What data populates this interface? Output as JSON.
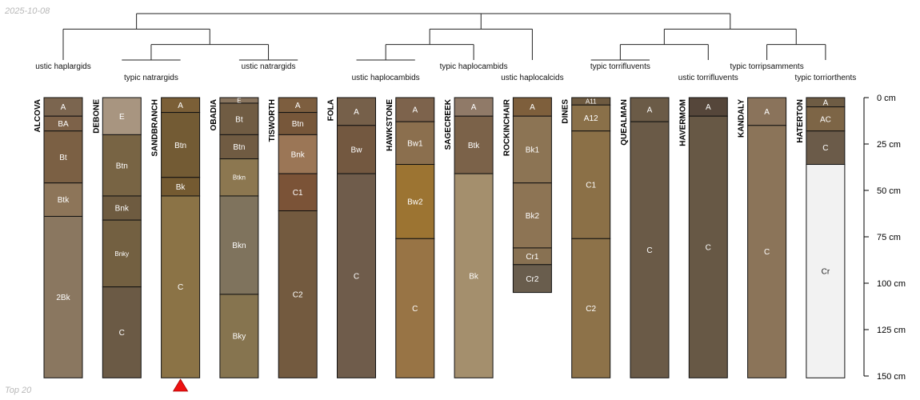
{
  "date_stamp": "2025-10-08",
  "footer_label": "Top 20",
  "chart_data": {
    "type": "soil-profile-sketch",
    "depth_axis": {
      "unit": "cm",
      "range": [
        0,
        150
      ],
      "ticks": [
        0,
        25,
        50,
        75,
        100,
        125,
        150
      ],
      "tick_labels": [
        "0 cm",
        "25 cm",
        "50 cm",
        "75 cm",
        "100 cm",
        "125 cm",
        "150 cm"
      ]
    },
    "marker_profile": "SANDBRANCH",
    "profiles": [
      {
        "name": "ALCOVA",
        "horizons": [
          {
            "name": "A",
            "top": 0,
            "bottom": 10,
            "color": "#7b654f"
          },
          {
            "name": "BA",
            "top": 10,
            "bottom": 18,
            "color": "#7d6249"
          },
          {
            "name": "Bt",
            "top": 18,
            "bottom": 46,
            "color": "#7b6044"
          },
          {
            "name": "Btk",
            "top": 46,
            "bottom": 64,
            "color": "#8d7559"
          },
          {
            "name": "2Bk",
            "top": 64,
            "bottom": 151,
            "color": "#8a7760"
          }
        ]
      },
      {
        "name": "DEBONE",
        "horizons": [
          {
            "name": "E",
            "top": 0,
            "bottom": 20,
            "color": "#a89580"
          },
          {
            "name": "Btn",
            "top": 20,
            "bottom": 53,
            "color": "#786444"
          },
          {
            "name": "Bnk",
            "top": 53,
            "bottom": 66,
            "color": "#6e5b40"
          },
          {
            "name": "Bnky",
            "top": 66,
            "bottom": 102,
            "color": "#736041"
          },
          {
            "name": "C",
            "top": 102,
            "bottom": 151,
            "color": "#6b5a45"
          }
        ]
      },
      {
        "name": "SANDBRANCH",
        "horizons": [
          {
            "name": "A",
            "top": 0,
            "bottom": 8,
            "color": "#7b5f37"
          },
          {
            "name": "Btn",
            "top": 8,
            "bottom": 43,
            "color": "#735b34"
          },
          {
            "name": "Bk",
            "top": 43,
            "bottom": 53,
            "color": "#745a31"
          },
          {
            "name": "C",
            "top": 53,
            "bottom": 151,
            "color": "#8b7346"
          }
        ]
      },
      {
        "name": "OBADIA",
        "horizons": [
          {
            "name": "E",
            "top": 0,
            "bottom": 3,
            "color": "#88745e"
          },
          {
            "name": "Bt",
            "top": 3,
            "bottom": 20,
            "color": "#705c43"
          },
          {
            "name": "Btn",
            "top": 20,
            "bottom": 33,
            "color": "#705b42"
          },
          {
            "name": "Btkn",
            "top": 33,
            "bottom": 53,
            "color": "#8c7750"
          },
          {
            "name": "Bkn",
            "top": 53,
            "bottom": 106,
            "color": "#7f735d"
          },
          {
            "name": "Bky",
            "top": 106,
            "bottom": 151,
            "color": "#86744f"
          }
        ]
      },
      {
        "name": "TISWORTH",
        "horizons": [
          {
            "name": "A",
            "top": 0,
            "bottom": 8,
            "color": "#7d5e3f"
          },
          {
            "name": "Btn",
            "top": 8,
            "bottom": 20,
            "color": "#77573a"
          },
          {
            "name": "Bnk",
            "top": 20,
            "bottom": 41,
            "color": "#9b7656"
          },
          {
            "name": "C1",
            "top": 41,
            "bottom": 61,
            "color": "#7b5337"
          },
          {
            "name": "C2",
            "top": 61,
            "bottom": 151,
            "color": "#735a3f"
          }
        ]
      },
      {
        "name": "FOLA",
        "horizons": [
          {
            "name": "A",
            "top": 0,
            "bottom": 15,
            "color": "#76604a"
          },
          {
            "name": "Bw",
            "top": 15,
            "bottom": 41,
            "color": "#735840"
          },
          {
            "name": "C",
            "top": 41,
            "bottom": 151,
            "color": "#6f5c4b"
          }
        ]
      },
      {
        "name": "HAWKSTONE",
        "horizons": [
          {
            "name": "A",
            "top": 0,
            "bottom": 13,
            "color": "#7d634c"
          },
          {
            "name": "Bw1",
            "top": 13,
            "bottom": 36,
            "color": "#8b6f4e"
          },
          {
            "name": "Bw2",
            "top": 36,
            "bottom": 76,
            "color": "#9c7432"
          },
          {
            "name": "C",
            "top": 76,
            "bottom": 151,
            "color": "#987445"
          }
        ]
      },
      {
        "name": "SAGECREEK",
        "horizons": [
          {
            "name": "A",
            "top": 0,
            "bottom": 10,
            "color": "#907a68"
          },
          {
            "name": "Btk",
            "top": 10,
            "bottom": 41,
            "color": "#7b6249"
          },
          {
            "name": "Bk",
            "top": 41,
            "bottom": 151,
            "color": "#a48f6d"
          }
        ]
      },
      {
        "name": "ROCKINCHAIR",
        "horizons": [
          {
            "name": "A",
            "top": 0,
            "bottom": 10,
            "color": "#7e5f3c"
          },
          {
            "name": "Bk1",
            "top": 10,
            "bottom": 46,
            "color": "#8c7454"
          },
          {
            "name": "Bk2",
            "top": 46,
            "bottom": 81,
            "color": "#8d7454"
          },
          {
            "name": "Cr1",
            "top": 81,
            "bottom": 90,
            "color": "#887152"
          },
          {
            "name": "Cr2",
            "top": 90,
            "bottom": 105,
            "color": "#695d4d"
          }
        ]
      },
      {
        "name": "DINES",
        "horizons": [
          {
            "name": "A11",
            "top": 0,
            "bottom": 4,
            "color": "#6e5a40"
          },
          {
            "name": "A12",
            "top": 4,
            "bottom": 18,
            "color": "#8a7049"
          },
          {
            "name": "C1",
            "top": 18,
            "bottom": 76,
            "color": "#8b7047"
          },
          {
            "name": "C2",
            "top": 76,
            "bottom": 151,
            "color": "#8d7249"
          }
        ]
      },
      {
        "name": "QUEALMAN",
        "horizons": [
          {
            "name": "A",
            "top": 0,
            "bottom": 13,
            "color": "#6b5b47"
          },
          {
            "name": "C",
            "top": 13,
            "bottom": 151,
            "color": "#6a5a47"
          }
        ]
      },
      {
        "name": "HAVERMOM",
        "horizons": [
          {
            "name": "A",
            "top": 0,
            "bottom": 10,
            "color": "#55463a"
          },
          {
            "name": "C",
            "top": 10,
            "bottom": 151,
            "color": "#675845"
          }
        ]
      },
      {
        "name": "KANDALY",
        "horizons": [
          {
            "name": "A",
            "top": 0,
            "bottom": 15,
            "color": "#8a735b"
          },
          {
            "name": "C",
            "top": 15,
            "bottom": 151,
            "color": "#8b7459"
          }
        ]
      },
      {
        "name": "HATERTON",
        "horizons": [
          {
            "name": "A",
            "top": 0,
            "bottom": 5,
            "color": "#6e5c44"
          },
          {
            "name": "AC",
            "top": 5,
            "bottom": 18,
            "color": "#7d6546"
          },
          {
            "name": "C",
            "top": 18,
            "bottom": 36,
            "color": "#6b5b49"
          },
          {
            "name": "Cr",
            "top": 36,
            "bottom": 151,
            "color": "#f2f2f2"
          }
        ]
      }
    ],
    "groups": [
      {
        "label": "ustic haplargids",
        "members": [
          "ALCOVA"
        ]
      },
      {
        "label": "typic natrargids",
        "members": [
          "DEBONE",
          "SANDBRANCH"
        ]
      },
      {
        "label": "ustic natrargids",
        "members": [
          "OBADIA",
          "TISWORTH"
        ]
      },
      {
        "label": "ustic haplocambids",
        "members": [
          "FOLA",
          "HAWKSTONE"
        ]
      },
      {
        "label": "typic haplocambids",
        "members": [
          "SAGECREEK"
        ]
      },
      {
        "label": "ustic haplocalcids",
        "members": [
          "ROCKINCHAIR"
        ]
      },
      {
        "label": "typic torrifluvents",
        "members": [
          "DINES",
          "QUEALMAN"
        ]
      },
      {
        "label": "ustic torrifluvents",
        "members": [
          "HAVERMOM"
        ]
      },
      {
        "label": "typic torripsamments",
        "members": [
          "KANDALY"
        ]
      },
      {
        "label": "typic torriorthents",
        "members": [
          "HATERTON"
        ]
      }
    ],
    "dendrogram": [
      [
        "ustic haplargids",
        [
          "typic natrargids",
          "ustic natrargids"
        ]
      ],
      [
        [
          "ustic haplocambids",
          "typic haplocambids"
        ],
        "ustic haplocalcids"
      ],
      [
        [
          "typic torrifluvents",
          "ustic torrifluvents"
        ],
        [
          "typic torripsamments",
          "typic torriorthents"
        ]
      ]
    ]
  }
}
